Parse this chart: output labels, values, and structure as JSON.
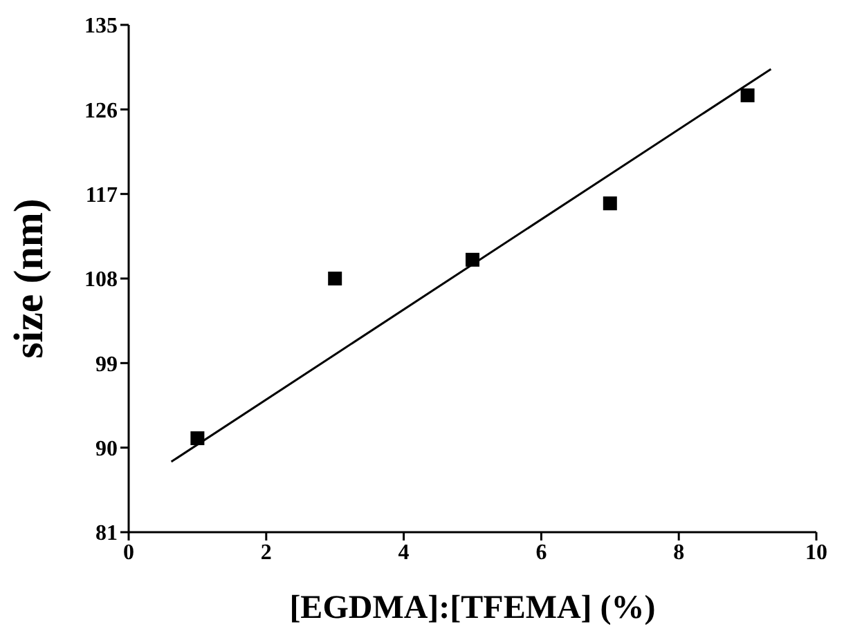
{
  "chart_data": {
    "type": "scatter",
    "xlabel": "[EGDMA]:[TFEMA] (%)",
    "ylabel": "size (nm)",
    "xlim": [
      0,
      10
    ],
    "xticks": [
      0,
      2,
      4,
      6,
      8,
      10
    ],
    "ylim": [
      81,
      135
    ],
    "yticks": [
      81,
      90,
      99,
      108,
      117,
      126,
      135
    ],
    "grid": false,
    "legend": false,
    "series": [
      {
        "type": "scatter",
        "color": "#000000",
        "marker": "square",
        "x": [
          1,
          3,
          5,
          7,
          9
        ],
        "values": [
          91,
          108,
          110,
          116,
          127.5
        ]
      },
      {
        "type": "line",
        "color": "#000000",
        "marker": "none",
        "line_style": "solid",
        "x": [
          0.62,
          9.34
        ],
        "values": [
          88.5,
          130.3
        ]
      }
    ]
  }
}
